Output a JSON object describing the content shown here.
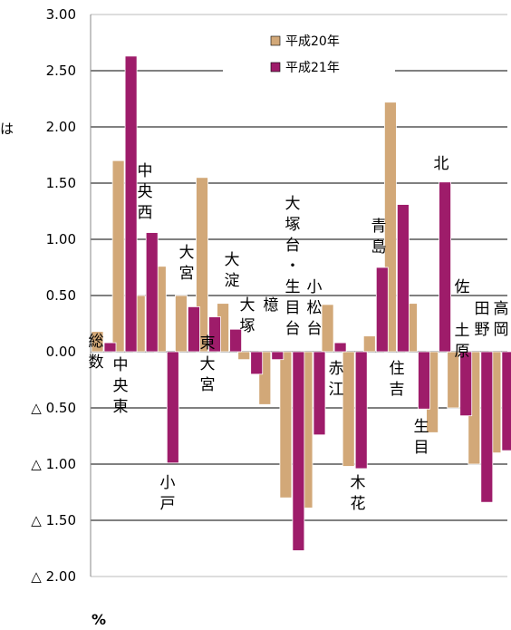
{
  "chart_data": {
    "type": "bar",
    "unit_label": "%",
    "side_text": "は",
    "ylim": [
      -2.0,
      3.0
    ],
    "ticks": [
      {
        "value": 3.0,
        "label": "3.00"
      },
      {
        "value": 2.5,
        "label": "2.50"
      },
      {
        "value": 2.0,
        "label": "2.00"
      },
      {
        "value": 1.5,
        "label": "1.50"
      },
      {
        "value": 1.0,
        "label": "1.00"
      },
      {
        "value": 0.5,
        "label": "0.50"
      },
      {
        "value": 0.0,
        "label": "0.00"
      },
      {
        "value": -0.5,
        "label": "△ 0.50"
      },
      {
        "value": -1.0,
        "label": "△ 1.00"
      },
      {
        "value": -1.5,
        "label": "△ 1.50"
      },
      {
        "value": -2.0,
        "label": "△ 2.00"
      }
    ],
    "grid": true,
    "legend_position": "top-center",
    "colors": {
      "平成20年": "#d2a878",
      "平成21年": "#9e1c6a"
    },
    "series": [
      {
        "name": "平成20年",
        "values": [
          0.18,
          1.7,
          0.5,
          0.76,
          0.5,
          1.55,
          0.43,
          -0.07,
          -0.47,
          -1.3,
          -1.39,
          0.42,
          -1.02,
          0.14,
          2.22,
          0.43,
          -0.72,
          -0.5,
          -1.0,
          -0.9
        ]
      },
      {
        "name": "平成21年",
        "values": [
          0.08,
          2.63,
          1.06,
          -0.99,
          0.4,
          0.31,
          0.2,
          -0.2,
          -0.07,
          -1.77,
          -0.74,
          0.08,
          -1.04,
          0.75,
          1.31,
          -0.51,
          1.51,
          -0.57,
          -1.34,
          -0.88
        ]
      }
    ],
    "labels": [
      {
        "text": "総数"
      },
      {
        "text": "中央東"
      },
      {
        "text": "中央西"
      },
      {
        "text": "小戸"
      },
      {
        "text": "大宮"
      },
      {
        "text": "東大宮"
      },
      {
        "text": "大淀"
      },
      {
        "text": "大塚"
      },
      {
        "text": "檍"
      },
      {
        "text": "大塚台・生目台"
      },
      {
        "text": "小松台"
      },
      {
        "text": "赤江"
      },
      {
        "text": "木花"
      },
      {
        "text": "青島"
      },
      {
        "text": "住吉"
      },
      {
        "text": "生目"
      },
      {
        "text": "北"
      },
      {
        "text": "佐土原"
      },
      {
        "text": "田野"
      },
      {
        "text": "高岡"
      }
    ]
  }
}
